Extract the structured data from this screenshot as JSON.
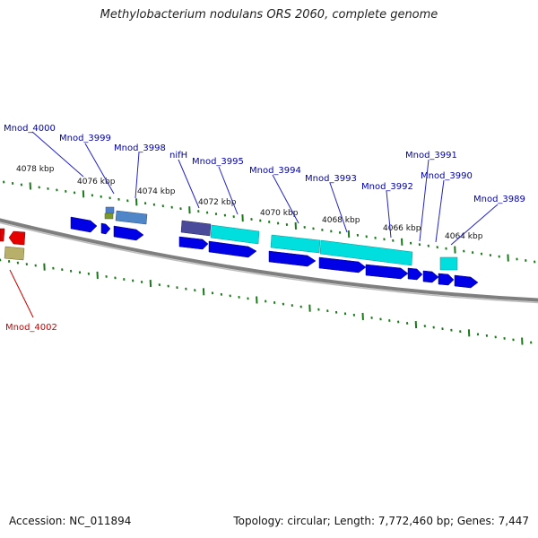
{
  "title": "Methylobacterium nodulans ORS 2060, complete genome",
  "footer": {
    "accession": "Accession: NC_011894",
    "summary": "Topology: circular; Length: 7,772,460 bp; Genes: 7,447"
  },
  "colors": {
    "background": "#ffffff",
    "backbone": "#7f7f7f",
    "tick": "#1a7a1a",
    "forward_gene": "#0000e6",
    "rna_gene": "#00dede",
    "reverse_gene": "#e60000",
    "label_forward": "#0000aa",
    "label_reverse": "#cc0000"
  },
  "scale_labels": [
    "4078 kbp",
    "4076 kbp",
    "4074 kbp",
    "4072 kbp",
    "4070 kbp",
    "4068 kbp",
    "4066 kbp",
    "4064 kbp"
  ],
  "gene_labels": {
    "forward": [
      "Mnod_4000",
      "Mnod_3999",
      "Mnod_3998",
      "nifH",
      "Mnod_3995",
      "Mnod_3994",
      "Mnod_3993",
      "Mnod_3992",
      "Mnod_3991",
      "Mnod_3990",
      "Mnod_3989"
    ],
    "reverse": [
      "Mnod_4002"
    ]
  }
}
